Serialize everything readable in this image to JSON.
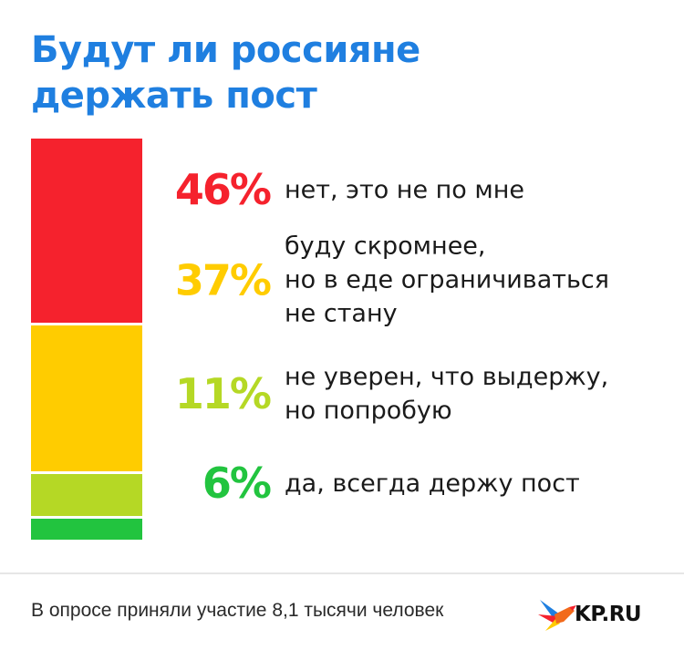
{
  "title_lines": [
    "Будут ли россияне",
    "держать пост"
  ],
  "chart_data": {
    "type": "bar",
    "stacked": true,
    "orientation": "vertical",
    "categories": [
      "нет, это не по мне",
      "буду скромнее, но в еде ограничиваться не стану",
      "не уверен, что выдержу, но попробую",
      "да, всегда держу пост"
    ],
    "values": [
      46,
      37,
      11,
      6
    ],
    "unit": "%",
    "colors": [
      "#f5222d",
      "#ffcc00",
      "#b5d825",
      "#22c43f"
    ]
  },
  "rows": [
    {
      "percent": "46%",
      "label_lines": [
        "нет, это не по мне"
      ],
      "color": "#f5222d"
    },
    {
      "percent": "37%",
      "label_lines": [
        "буду скромнее,",
        "но в еде ограничиваться",
        "не стану"
      ],
      "color": "#ffcc00"
    },
    {
      "percent": "11%",
      "label_lines": [
        "не уверен, что выдержу,",
        "но попробую"
      ],
      "color": "#b5d825"
    },
    {
      "percent": "6%",
      "label_lines": [
        "да, всегда держу пост"
      ],
      "color": "#22c43f"
    }
  ],
  "footer": {
    "note": "В опросе приняли участие 8,1 тысячи человек",
    "logo_text": "KP.RU"
  },
  "icons": {
    "logo": "kp-swallow-icon"
  },
  "colors": {
    "title": "#1f7fe0"
  }
}
